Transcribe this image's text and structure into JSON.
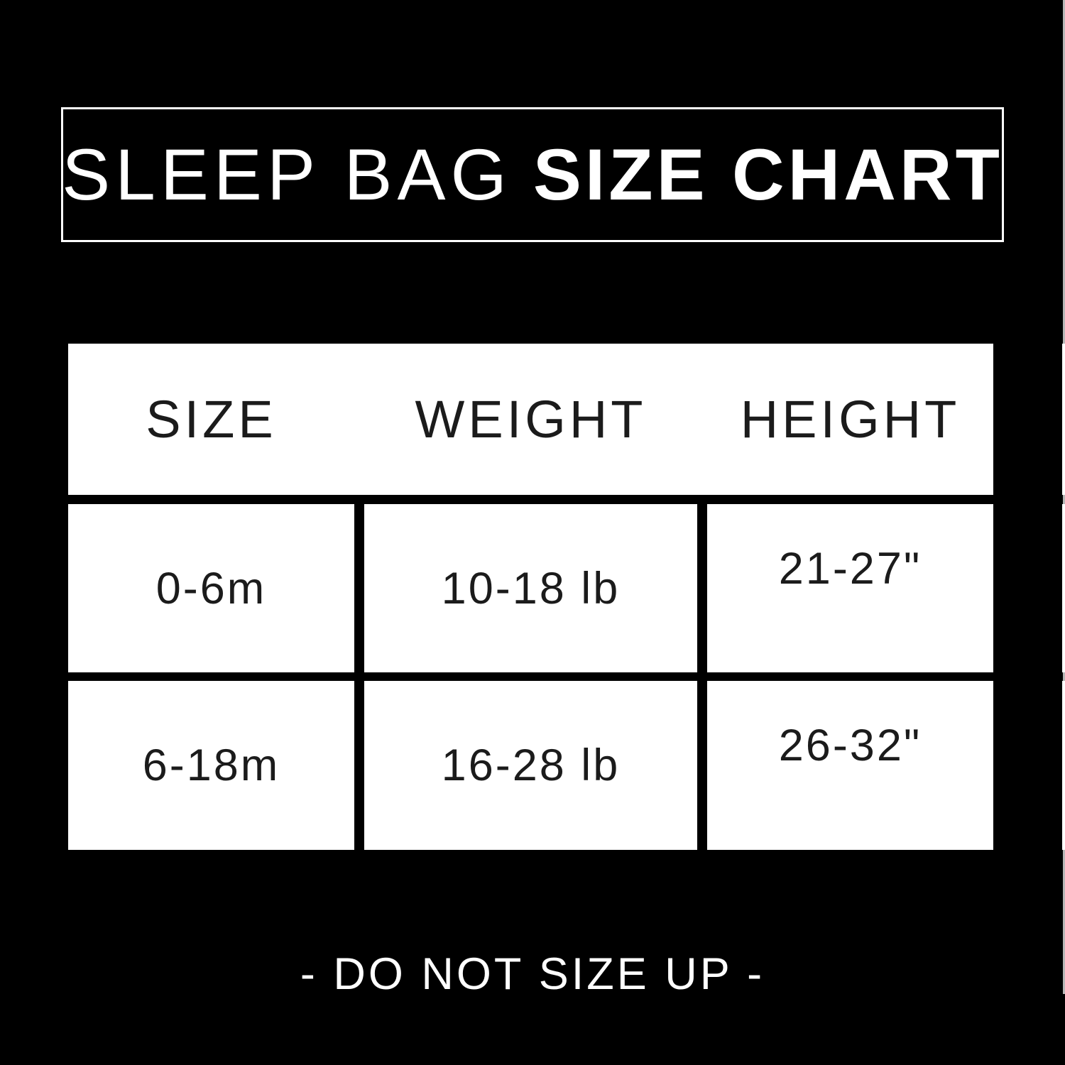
{
  "title": {
    "light": "SLEEP BAG",
    "bold": "SIZE CHART"
  },
  "chart_data": {
    "type": "table",
    "title": "SLEEP BAG SIZE CHART",
    "columns": [
      "SIZE",
      "WEIGHT",
      "HEIGHT"
    ],
    "rows": [
      [
        "0-6m",
        "10-18 lb",
        "21-27\""
      ],
      [
        "6-18m",
        "16-28 lb",
        "26-32\""
      ]
    ],
    "footnote": "- DO NOT SIZE UP -"
  },
  "footer": {
    "note": "- DO NOT SIZE UP -"
  },
  "colors": {
    "background": "#000000",
    "panel": "#ffffff",
    "title_text": "#ffffff",
    "table_text": "#1b1b1b"
  }
}
